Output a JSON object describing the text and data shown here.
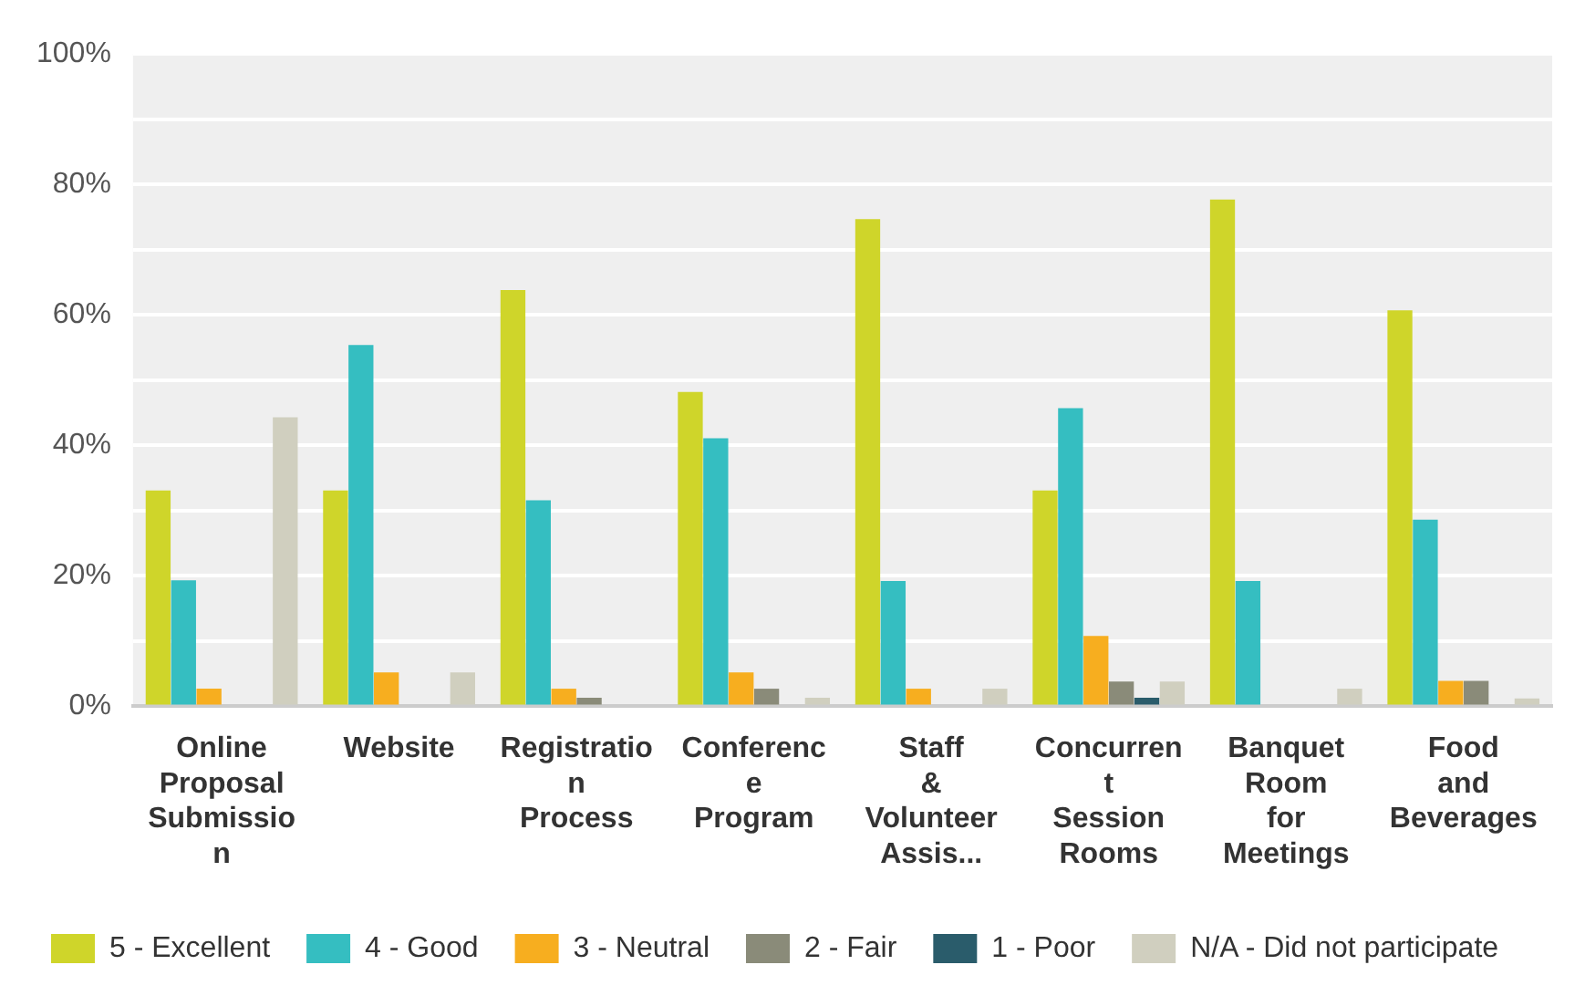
{
  "chart_data": {
    "type": "bar",
    "categories": [
      "Online Proposal Submission",
      "Website",
      "Registration Process",
      "Conference Program",
      "Staff & Volunteer Assis...",
      "Concurrent Session Rooms",
      "Banquet Room for Meetings",
      "Food and Beverages"
    ],
    "series": [
      {
        "name": "5 - Excellent",
        "color": "#cfd52a",
        "values": [
          33.1,
          33.1,
          63.8,
          48.2,
          74.7,
          33.1,
          77.7,
          60.7
        ]
      },
      {
        "name": "4 - Good",
        "color": "#35bec1",
        "values": [
          19.3,
          55.4,
          31.6,
          41.1,
          19.2,
          45.7,
          19.2,
          28.6
        ]
      },
      {
        "name": "3 - Neutral",
        "color": "#f7ae1f",
        "values": [
          2.7,
          5.2,
          2.7,
          5.2,
          2.7,
          10.8,
          0,
          3.9
        ]
      },
      {
        "name": "2 - Fair",
        "color": "#8a8b79",
        "values": [
          0,
          0,
          1.3,
          2.7,
          0,
          3.8,
          0,
          3.9
        ]
      },
      {
        "name": "1 - Poor",
        "color": "#2a5c6b",
        "values": [
          0,
          0,
          0,
          0,
          0,
          1.3,
          0,
          0
        ]
      },
      {
        "name": "N/A - Did not participate",
        "color": "#d0cfbf",
        "values": [
          44.3,
          5.2,
          0,
          1.3,
          2.7,
          3.8,
          2.7,
          1.2
        ]
      }
    ],
    "ylim": [
      0,
      100
    ],
    "yticks": [
      {
        "value": 0,
        "label": "0%"
      },
      {
        "value": 10,
        "label": null
      },
      {
        "value": 20,
        "label": "20%"
      },
      {
        "value": 30,
        "label": null
      },
      {
        "value": 40,
        "label": "40%"
      },
      {
        "value": 50,
        "label": null
      },
      {
        "value": 60,
        "label": "60%"
      },
      {
        "value": 70,
        "label": null
      },
      {
        "value": 80,
        "label": "80%"
      },
      {
        "value": 90,
        "label": null
      },
      {
        "value": 100,
        "label": "100%"
      }
    ],
    "grid": "y",
    "legend": "bottom"
  }
}
